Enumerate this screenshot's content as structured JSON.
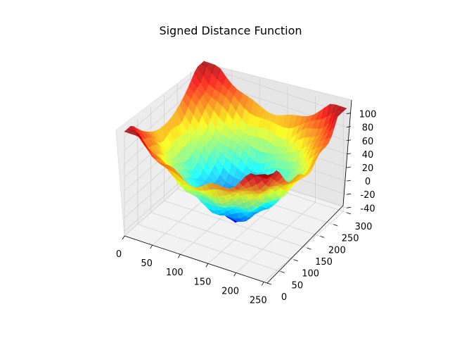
{
  "chart_data": {
    "type": "surface3d",
    "title": "Signed Distance Function",
    "colormap": "jet",
    "x_ticks": [
      "0",
      "50",
      "100",
      "150",
      "200",
      "250"
    ],
    "y_ticks": [
      "0",
      "50",
      "100",
      "150",
      "200",
      "250",
      "300"
    ],
    "z_ticks": [
      "-40",
      "-20",
      "0",
      "20",
      "40",
      "60",
      "80",
      "100"
    ],
    "xlim": [
      0,
      256
    ],
    "ylim": [
      0,
      300
    ],
    "zlim": [
      -47,
      110
    ],
    "grid": true,
    "surface": {
      "description_free_grid": true,
      "min": -47,
      "max": 108
    }
  }
}
